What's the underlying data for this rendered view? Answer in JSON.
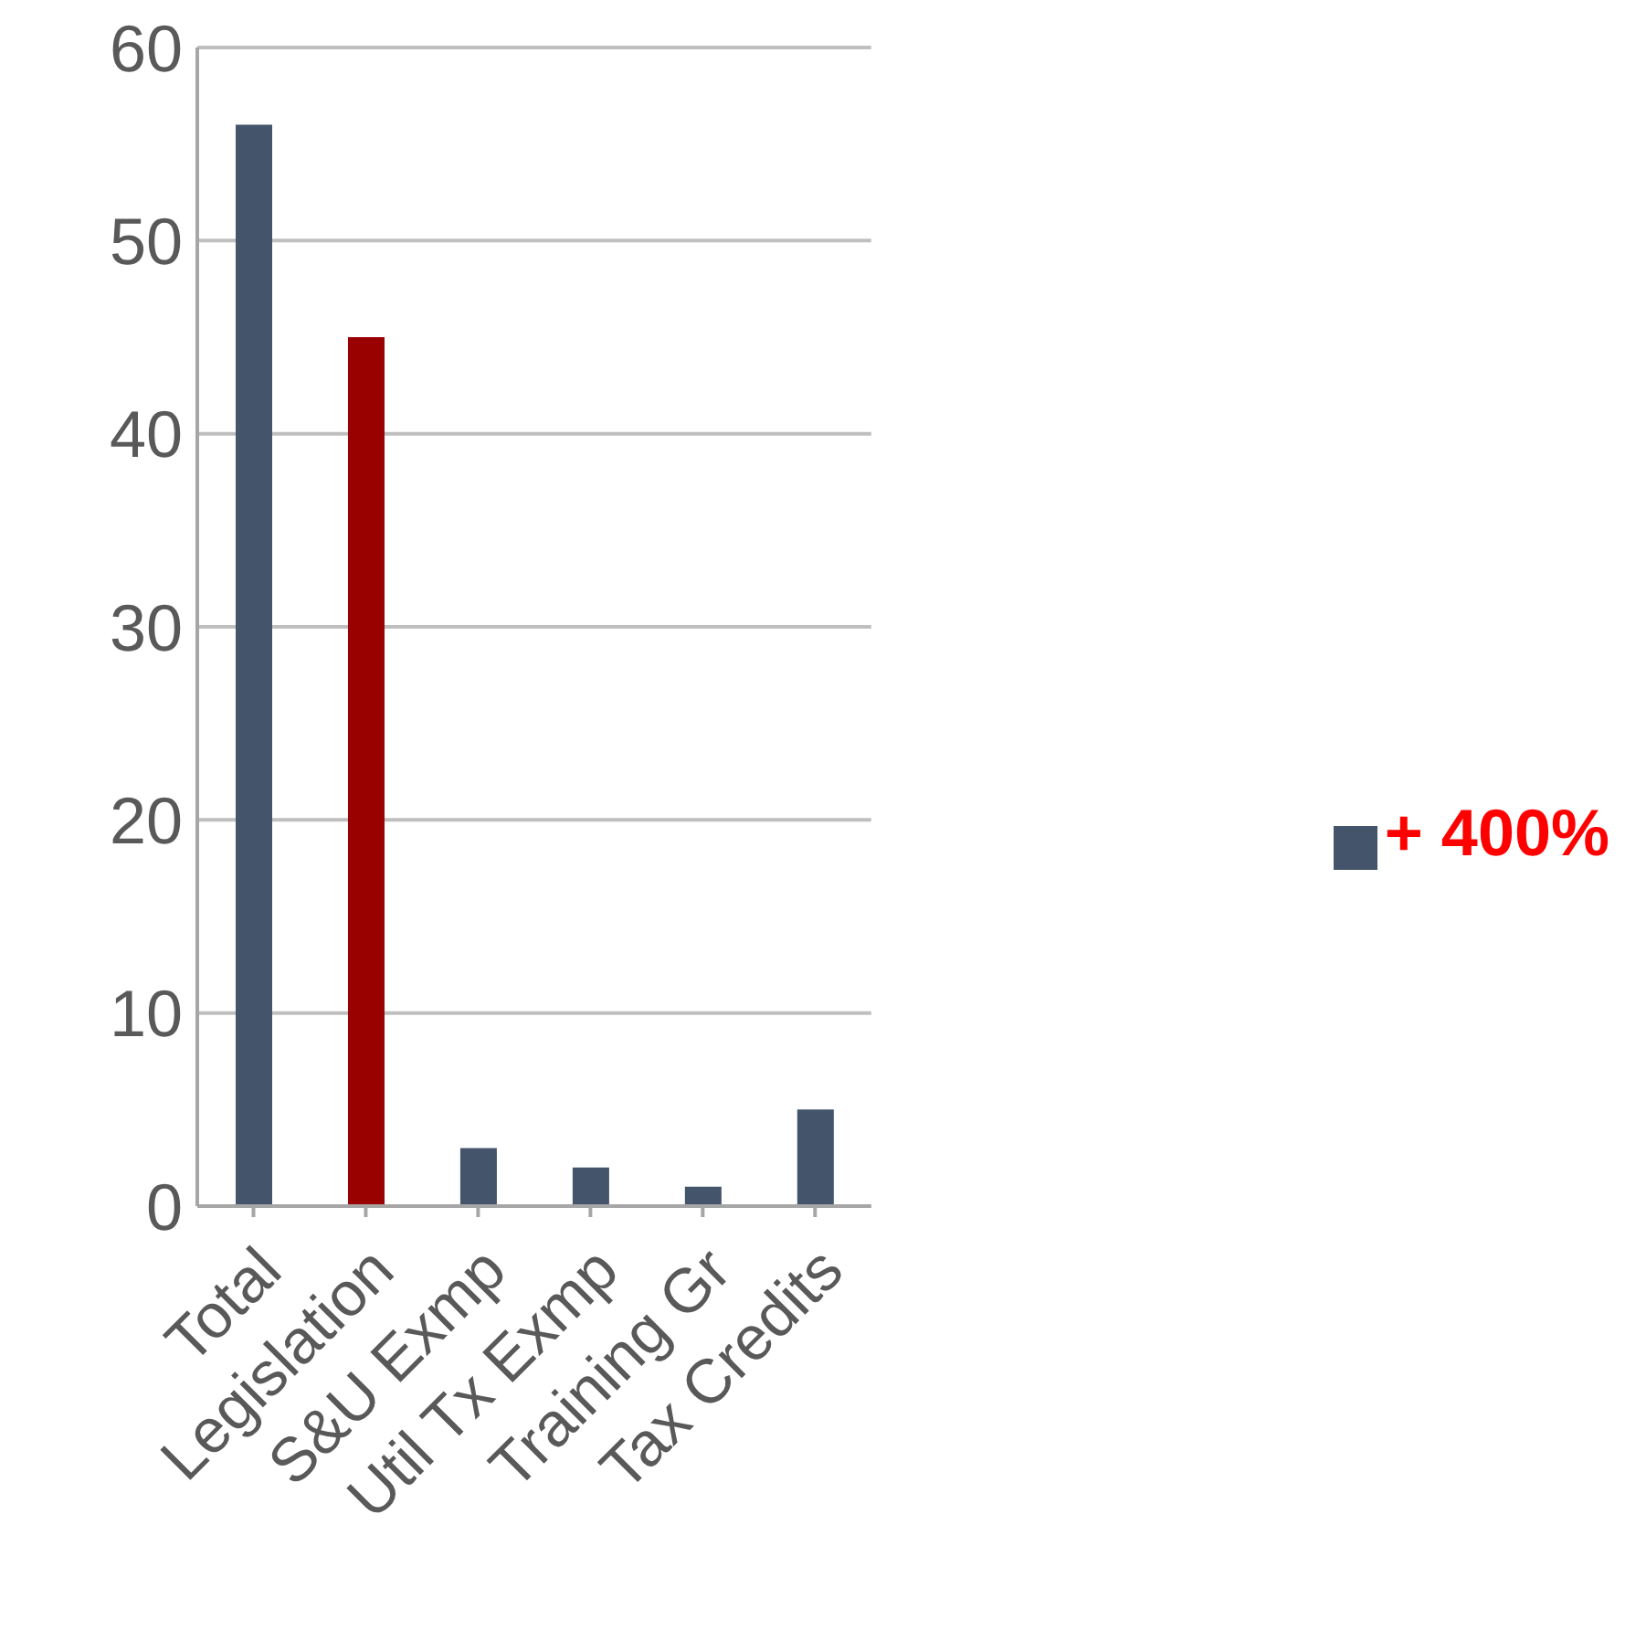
{
  "chart_data": {
    "type": "bar",
    "categories": [
      "Total",
      "Legislation",
      "S&U Exmp",
      "Util Tx Exmp",
      "Training Gr",
      "Tax Credits"
    ],
    "series": [
      {
        "name": "+ 400%",
        "color": "#44546a",
        "colors": [
          "#44546a",
          "#990000",
          "#44546a",
          "#44546a",
          "#44546a",
          "#44546a"
        ],
        "values": [
          56,
          45,
          3,
          2,
          1,
          5
        ]
      }
    ],
    "ylim": [
      0,
      60
    ],
    "yticks": [
      0,
      10,
      20,
      30,
      40,
      50,
      60
    ],
    "grid": "y",
    "legend": "right"
  }
}
